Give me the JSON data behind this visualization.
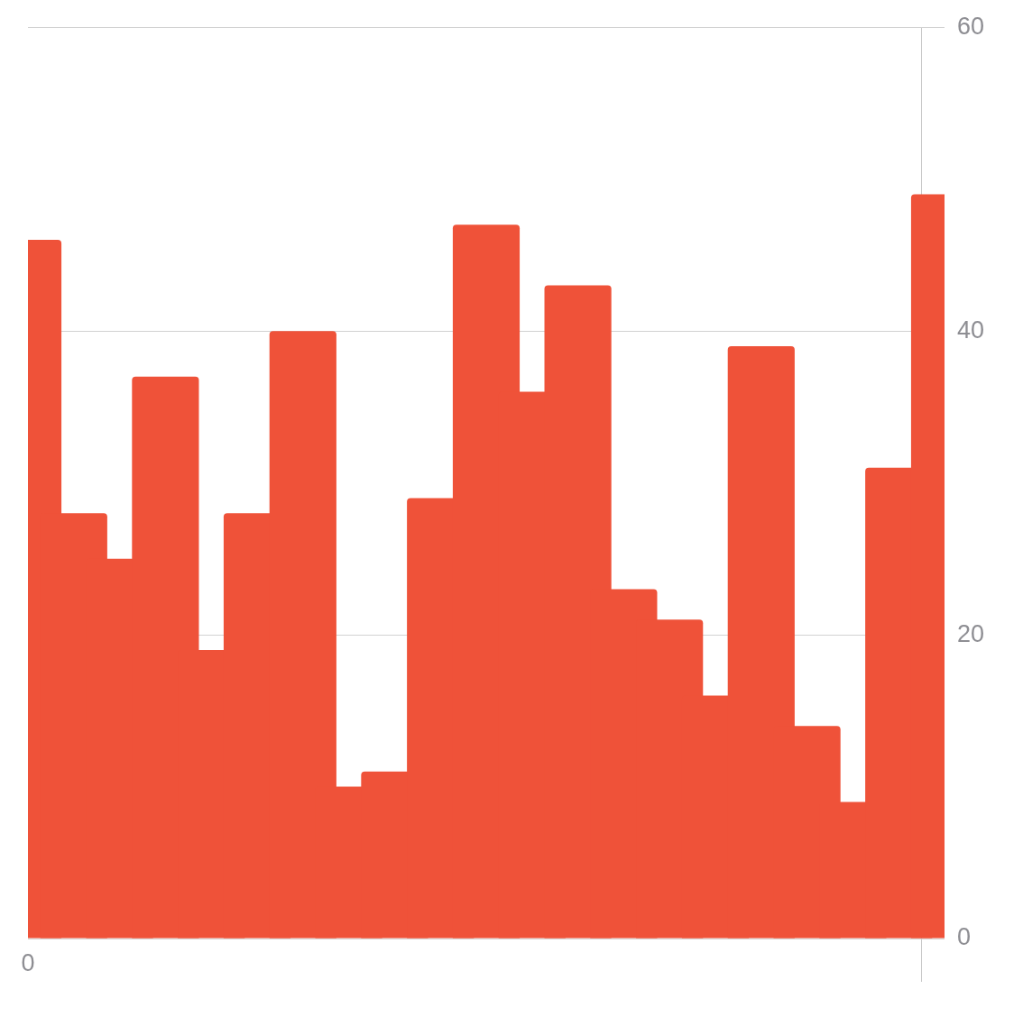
{
  "chart_data": {
    "type": "bar",
    "categories": [
      "0",
      null,
      null,
      null,
      null,
      null,
      null,
      null,
      null,
      null,
      null,
      null,
      null,
      null,
      null,
      null,
      null,
      null,
      null,
      null,
      null
    ],
    "values": [
      46,
      28,
      25,
      37,
      19,
      28,
      40,
      10,
      11,
      29,
      47,
      36,
      43,
      23,
      21,
      16,
      39,
      14,
      9,
      31,
      49
    ],
    "color": "#ef5239",
    "ylim": [
      0,
      60
    ],
    "yticks": [
      0,
      20,
      40,
      60
    ],
    "grid": true
  }
}
